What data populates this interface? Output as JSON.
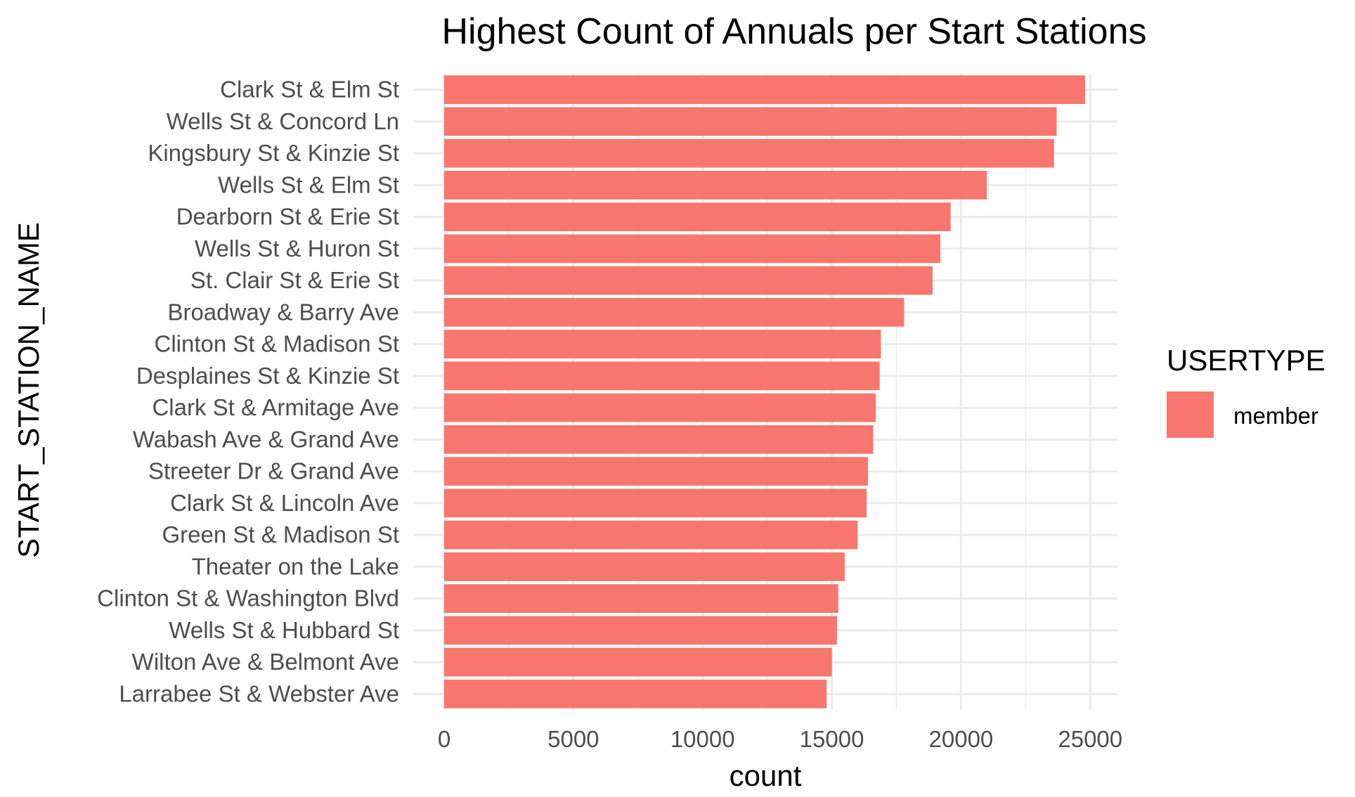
{
  "chart_data": {
    "type": "bar",
    "orientation": "horizontal",
    "title": "Highest Count of Annuals per Start Stations",
    "xlabel": "count",
    "ylabel": "START_STATION_NAME",
    "xlim": [
      0,
      26000
    ],
    "x_ticks": [
      0,
      5000,
      10000,
      15000,
      20000,
      25000
    ],
    "grid": true,
    "categories": [
      "Clark St & Elm St",
      "Wells St & Concord Ln",
      "Kingsbury St & Kinzie St",
      "Wells St & Elm St",
      "Dearborn St & Erie St",
      "Wells St & Huron St",
      "St. Clair St & Erie St",
      "Broadway & Barry Ave",
      "Clinton St & Madison St",
      "Desplaines St & Kinzie St",
      "Clark St & Armitage Ave",
      "Wabash Ave & Grand Ave",
      "Streeter Dr & Grand Ave",
      "Clark St & Lincoln Ave",
      "Green St & Madison St",
      "Theater on the Lake",
      "Clinton St & Washington Blvd",
      "Wells St & Hubbard St",
      "Wilton Ave & Belmont Ave",
      "Larrabee St & Webster Ave"
    ],
    "series": [
      {
        "name": "member",
        "color": "#f8766d",
        "values": [
          24800,
          23700,
          23600,
          21000,
          19600,
          19200,
          18900,
          17800,
          16900,
          16850,
          16700,
          16600,
          16400,
          16350,
          16000,
          15500,
          15250,
          15200,
          15000,
          14800
        ]
      }
    ],
    "legend": {
      "title": "USERTYPE",
      "position": "right",
      "entries": [
        {
          "label": "member",
          "color": "#f8766d"
        }
      ]
    }
  }
}
